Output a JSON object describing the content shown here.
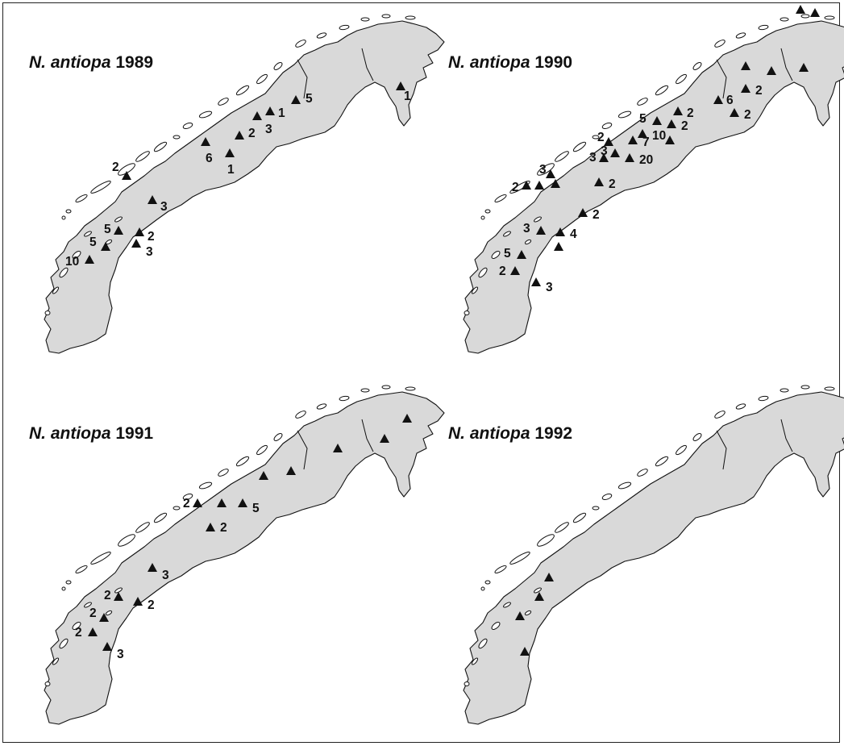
{
  "panels": [
    {
      "species": "N. antiopa",
      "year": "1989",
      "records": [
        {
          "id": "a1",
          "n": "1"
        },
        {
          "id": "a2",
          "n": "5"
        },
        {
          "id": "a3",
          "n": "3"
        },
        {
          "id": "a4",
          "n": "1"
        },
        {
          "id": "a5",
          "n": "2"
        },
        {
          "id": "a6",
          "n": "6"
        },
        {
          "id": "a7",
          "n": "1"
        },
        {
          "id": "a8",
          "n": "2"
        },
        {
          "id": "a9",
          "n": "3"
        },
        {
          "id": "a10",
          "n": "5"
        },
        {
          "id": "a11",
          "n": "2"
        },
        {
          "id": "a12",
          "n": "5"
        },
        {
          "id": "a13",
          "n": "3"
        },
        {
          "id": "a14",
          "n": "10"
        }
      ]
    },
    {
      "species": "N. antiopa",
      "year": "1990",
      "records": [
        {
          "id": "b1",
          "n": ""
        },
        {
          "id": "b2",
          "n": ""
        },
        {
          "id": "b3",
          "n": ""
        },
        {
          "id": "b4",
          "n": ""
        },
        {
          "id": "b5",
          "n": ""
        },
        {
          "id": "b6",
          "n": "6"
        },
        {
          "id": "b7",
          "n": "2"
        },
        {
          "id": "b8",
          "n": "2"
        },
        {
          "id": "b9",
          "n": "2"
        },
        {
          "id": "b10",
          "n": "5"
        },
        {
          "id": "b11",
          "n": "2"
        },
        {
          "id": "b12",
          "n": "10"
        },
        {
          "id": "b13",
          "n": "7"
        },
        {
          "id": "b14",
          "n": "2"
        },
        {
          "id": "b15",
          "n": ""
        },
        {
          "id": "b16",
          "n": "20"
        },
        {
          "id": "b17",
          "n": "3"
        },
        {
          "id": "b18",
          "n": "3"
        },
        {
          "id": "b19",
          "n": "3"
        },
        {
          "id": "b20",
          "n": "2"
        },
        {
          "id": "b21",
          "n": "2"
        },
        {
          "id": "b22",
          "n": "2"
        },
        {
          "id": "b23",
          "n": "3"
        },
        {
          "id": "b24",
          "n": "4"
        },
        {
          "id": "b25",
          "n": ""
        },
        {
          "id": "b26",
          "n": "5"
        },
        {
          "id": "b27",
          "n": "2"
        },
        {
          "id": "b28",
          "n": "3"
        },
        {
          "id": "b29",
          "n": ""
        },
        {
          "id": "b30",
          "n": ""
        }
      ]
    },
    {
      "species": "N. antiopa",
      "year": "1991",
      "records": [
        {
          "id": "c1",
          "n": ""
        },
        {
          "id": "c2",
          "n": ""
        },
        {
          "id": "c3",
          "n": ""
        },
        {
          "id": "c4",
          "n": ""
        },
        {
          "id": "c5",
          "n": "5"
        },
        {
          "id": "c6",
          "n": ""
        },
        {
          "id": "c7",
          "n": "2"
        },
        {
          "id": "c8",
          "n": "2"
        },
        {
          "id": "c9",
          "n": ""
        },
        {
          "id": "c10",
          "n": "3"
        },
        {
          "id": "c11",
          "n": "2"
        },
        {
          "id": "c12",
          "n": "2"
        },
        {
          "id": "c13",
          "n": "2"
        },
        {
          "id": "c14",
          "n": "2"
        },
        {
          "id": "c15",
          "n": "3"
        }
      ]
    },
    {
      "species": "N. antiopa",
      "year": "1992",
      "records": [
        {
          "id": "d1",
          "n": ""
        },
        {
          "id": "d2",
          "n": ""
        },
        {
          "id": "d3",
          "n": ""
        },
        {
          "id": "d4",
          "n": ""
        }
      ]
    }
  ]
}
